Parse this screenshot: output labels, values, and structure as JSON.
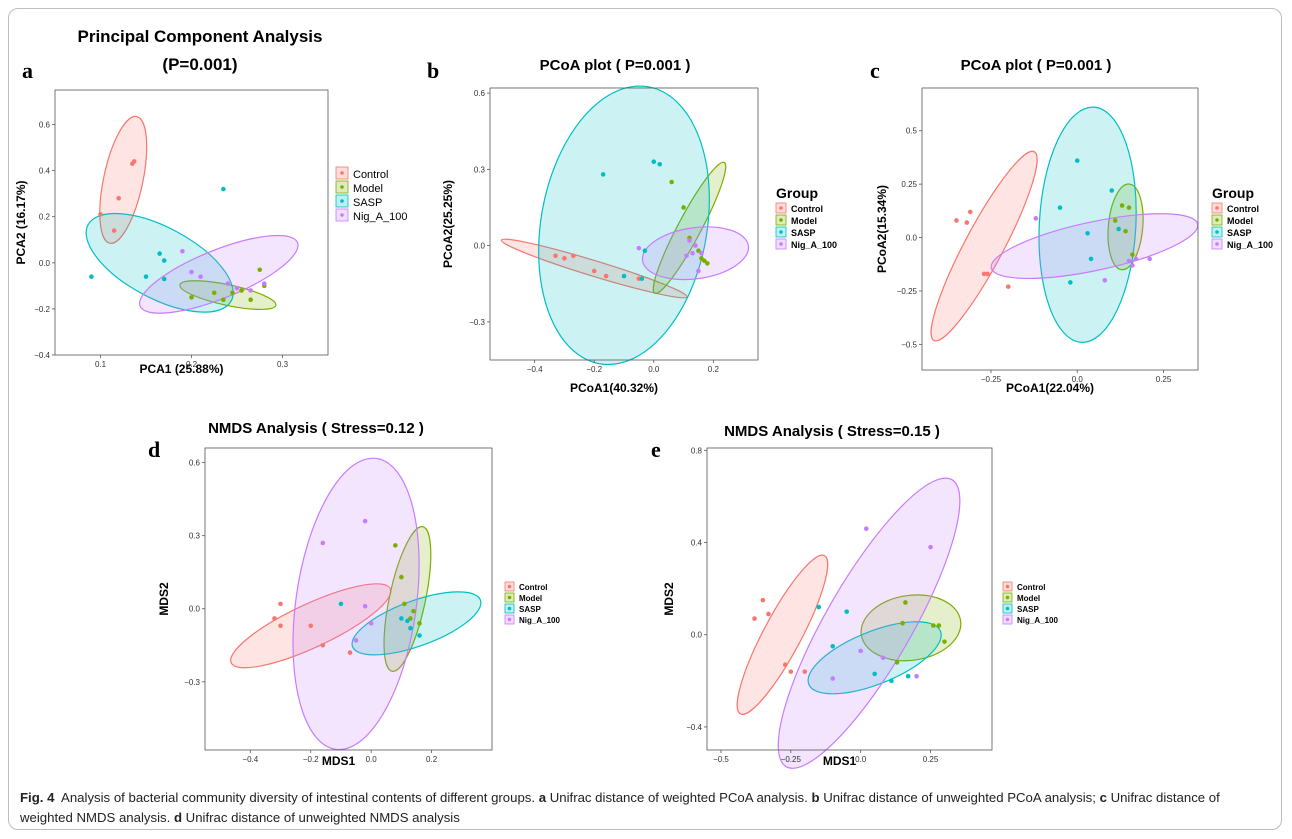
{
  "caption": {
    "fig_label": "Fig. 4",
    "text_1": "Analysis of bacterial community diversity of intestinal contents of different groups.",
    "label_a": "a",
    "text_a": "Unifrac distance of weighted PCoA analysis.",
    "label_b": "b",
    "text_b": "Unifrac distance of unweighted PCoA analysis;",
    "label_c": "c",
    "text_c": "Unifrac distance of weighted NMDS analysis.",
    "label_d": "d",
    "text_d": "Unifrac distance of unweighted NMDS analysis"
  },
  "colors": {
    "Control": "#F8766D",
    "Model": "#7CAE00",
    "SASP": "#00BFC4",
    "Nig_A_100": "#C77CFF"
  },
  "chart_data": [
    {
      "panel": "a",
      "type": "scatter",
      "title": "Principal Component Analysis",
      "subtitle": "(P=0.001)",
      "xlabel": "PCA1 (25.88%)",
      "ylabel": "PCA2 (16.17%)",
      "xlim": [
        0.05,
        0.35
      ],
      "ylim": [
        -0.4,
        0.75
      ],
      "xticks": [
        0.1,
        0.2,
        0.3
      ],
      "yticks": [
        -0.4,
        -0.2,
        0.0,
        0.2,
        0.4,
        0.6
      ],
      "legend_title": "",
      "legend_placement": "right",
      "series": [
        {
          "name": "Control",
          "points": [
            [
              0.1,
              0.21
            ],
            [
              0.115,
              0.14
            ],
            [
              0.12,
              0.28
            ],
            [
              0.135,
              0.43
            ],
            [
              0.137,
              0.44
            ]
          ],
          "ellipse": {
            "cx": 0.125,
            "cy": 0.36,
            "rx": 0.22,
            "ry": 0.022,
            "angle": -78
          }
        },
        {
          "name": "Model",
          "points": [
            [
              0.2,
              -0.15
            ],
            [
              0.225,
              -0.13
            ],
            [
              0.235,
              -0.16
            ],
            [
              0.245,
              -0.13
            ],
            [
              0.255,
              -0.12
            ],
            [
              0.265,
              -0.16
            ],
            [
              0.275,
              -0.03
            ],
            [
              0.28,
              -0.1
            ]
          ],
          "ellipse": {
            "cx": 0.24,
            "cy": -0.14,
            "rx": 0.055,
            "ry": 0.035,
            "angle": 12
          }
        },
        {
          "name": "SASP",
          "points": [
            [
              0.09,
              -0.06
            ],
            [
              0.15,
              -0.06
            ],
            [
              0.165,
              0.04
            ],
            [
              0.17,
              0.01
            ],
            [
              0.17,
              -0.07
            ],
            [
              0.235,
              0.32
            ]
          ],
          "ellipse": {
            "cx": 0.165,
            "cy": 0.0,
            "rx": 0.1,
            "ry": 0.075,
            "angle": 28
          }
        },
        {
          "name": "Nig_A_100",
          "points": [
            [
              0.19,
              0.05
            ],
            [
              0.2,
              -0.04
            ],
            [
              0.21,
              -0.06
            ],
            [
              0.24,
              -0.09
            ],
            [
              0.25,
              -0.11
            ],
            [
              0.265,
              -0.12
            ],
            [
              0.28,
              -0.09
            ]
          ],
          "ellipse": {
            "cx": 0.23,
            "cy": -0.05,
            "rx": 0.1,
            "ry": 0.06,
            "angle": -22
          }
        }
      ]
    },
    {
      "panel": "b",
      "type": "scatter",
      "title": "PCoA plot ( P=0.001 )",
      "subtitle": "",
      "xlabel": "PCoA1(40.32%)",
      "ylabel": "PCoA2(25.25%)",
      "xlim": [
        -0.55,
        0.35
      ],
      "ylim": [
        -0.45,
        0.62
      ],
      "xticks": [
        -0.4,
        -0.2,
        0.0,
        0.2
      ],
      "yticks": [
        -0.3,
        0.0,
        0.3,
        0.6
      ],
      "legend_title": "Group",
      "legend_placement": "right",
      "series": [
        {
          "name": "Control",
          "points": [
            [
              -0.33,
              -0.04
            ],
            [
              -0.3,
              -0.05
            ],
            [
              -0.27,
              -0.04
            ],
            [
              -0.2,
              -0.1
            ],
            [
              -0.16,
              -0.12
            ],
            [
              -0.05,
              -0.13
            ]
          ],
          "ellipse": {
            "cx": -0.2,
            "cy": -0.09,
            "rx": 0.33,
            "ry": 0.03,
            "angle": 17
          }
        },
        {
          "name": "Model",
          "points": [
            [
              0.06,
              0.25
            ],
            [
              0.1,
              0.15
            ],
            [
              0.12,
              0.03
            ],
            [
              0.15,
              -0.02
            ],
            [
              0.16,
              -0.05
            ],
            [
              0.17,
              -0.06
            ],
            [
              0.18,
              -0.07
            ]
          ],
          "ellipse": {
            "cx": 0.12,
            "cy": 0.07,
            "rx": 0.28,
            "ry": 0.04,
            "angle": -62
          }
        },
        {
          "name": "SASP",
          "points": [
            [
              -0.17,
              0.28
            ],
            [
              -0.1,
              -0.12
            ],
            [
              -0.04,
              -0.13
            ],
            [
              -0.03,
              -0.02
            ],
            [
              0.0,
              0.33
            ],
            [
              0.02,
              0.32
            ]
          ],
          "ellipse": {
            "cx": -0.1,
            "cy": 0.08,
            "rx": 0.55,
            "ry": 0.28,
            "angle": -80
          }
        },
        {
          "name": "Nig_A_100",
          "points": [
            [
              -0.05,
              -0.01
            ],
            [
              0.11,
              -0.04
            ],
            [
              0.12,
              0.02
            ],
            [
              0.13,
              -0.03
            ],
            [
              0.14,
              0.0
            ],
            [
              0.15,
              -0.1
            ],
            [
              0.16,
              -0.03
            ]
          ],
          "ellipse": {
            "cx": 0.14,
            "cy": -0.03,
            "rx": 0.18,
            "ry": 0.1,
            "angle": -8
          }
        }
      ]
    },
    {
      "panel": "c",
      "type": "scatter",
      "title": "PCoA plot ( P=0.001 )",
      "subtitle": "",
      "xlabel": "PCoA1(22.04%)",
      "ylabel": "PCoA2(15.34%)",
      "xlim": [
        -0.45,
        0.35
      ],
      "ylim": [
        -0.62,
        0.7
      ],
      "xticks": [
        -0.25,
        0.0,
        0.25
      ],
      "yticks": [
        -0.5,
        -0.25,
        0.0,
        0.25,
        0.5
      ],
      "legend_title": "Group",
      "legend_placement": "right",
      "series": [
        {
          "name": "Control",
          "points": [
            [
              -0.35,
              0.08
            ],
            [
              -0.32,
              0.07
            ],
            [
              -0.31,
              0.12
            ],
            [
              -0.27,
              -0.17
            ],
            [
              -0.26,
              -0.17
            ],
            [
              -0.2,
              -0.23
            ]
          ],
          "ellipse": {
            "cx": -0.27,
            "cy": -0.04,
            "rx": 0.43,
            "ry": 0.06,
            "angle": -62
          }
        },
        {
          "name": "Model",
          "points": [
            [
              0.11,
              0.08
            ],
            [
              0.13,
              0.15
            ],
            [
              0.14,
              0.03
            ],
            [
              0.15,
              0.14
            ],
            [
              0.16,
              -0.08
            ]
          ],
          "ellipse": {
            "cx": 0.14,
            "cy": 0.05,
            "rx": 0.2,
            "ry": 0.05,
            "angle": -85
          }
        },
        {
          "name": "SASP",
          "points": [
            [
              -0.05,
              0.14
            ],
            [
              -0.02,
              -0.21
            ],
            [
              0.0,
              0.36
            ],
            [
              0.03,
              0.02
            ],
            [
              0.04,
              -0.1
            ],
            [
              0.1,
              0.22
            ],
            [
              0.12,
              0.04
            ]
          ],
          "ellipse": {
            "cx": 0.03,
            "cy": 0.06,
            "rx": 0.55,
            "ry": 0.14,
            "angle": -87
          }
        },
        {
          "name": "Nig_A_100",
          "points": [
            [
              -0.12,
              0.09
            ],
            [
              0.08,
              -0.2
            ],
            [
              0.15,
              -0.11
            ],
            [
              0.16,
              -0.13
            ],
            [
              0.17,
              -0.1
            ],
            [
              0.21,
              -0.1
            ]
          ],
          "ellipse": {
            "cx": 0.05,
            "cy": -0.04,
            "rx": 0.31,
            "ry": 0.11,
            "angle": -12
          }
        }
      ]
    },
    {
      "panel": "d",
      "type": "scatter",
      "title": "NMDS Analysis ( Stress=0.12 )",
      "subtitle": "",
      "xlabel": "MDS1",
      "ylabel": "MDS2",
      "xlim": [
        -0.55,
        0.4
      ],
      "ylim": [
        -0.58,
        0.66
      ],
      "xticks": [
        -0.4,
        -0.2,
        0.0,
        0.2
      ],
      "yticks": [
        -0.3,
        0.0,
        0.3,
        0.6
      ],
      "legend_title": "",
      "legend_placement": "right",
      "series": [
        {
          "name": "Control",
          "points": [
            [
              -0.32,
              -0.04
            ],
            [
              -0.3,
              0.02
            ],
            [
              -0.3,
              -0.07
            ],
            [
              -0.2,
              -0.07
            ],
            [
              -0.16,
              -0.15
            ],
            [
              -0.07,
              -0.18
            ]
          ],
          "ellipse": {
            "cx": -0.2,
            "cy": -0.07,
            "rx": 0.3,
            "ry": 0.085,
            "angle": -25
          }
        },
        {
          "name": "Model",
          "points": [
            [
              0.08,
              0.26
            ],
            [
              0.1,
              0.13
            ],
            [
              0.11,
              0.02
            ],
            [
              0.13,
              -0.04
            ],
            [
              0.14,
              -0.01
            ],
            [
              0.16,
              -0.06
            ]
          ],
          "ellipse": {
            "cx": 0.12,
            "cy": 0.04,
            "rx": 0.3,
            "ry": 0.06,
            "angle": -78
          }
        },
        {
          "name": "SASP",
          "points": [
            [
              -0.1,
              0.02
            ],
            [
              0.1,
              -0.04
            ],
            [
              0.12,
              -0.05
            ],
            [
              0.13,
              -0.08
            ],
            [
              0.16,
              -0.11
            ]
          ],
          "ellipse": {
            "cx": 0.15,
            "cy": -0.06,
            "rx": 0.23,
            "ry": 0.09,
            "angle": -20
          }
        },
        {
          "name": "Nig_A_100",
          "points": [
            [
              -0.16,
              0.27
            ],
            [
              -0.05,
              -0.13
            ],
            [
              -0.02,
              0.36
            ],
            [
              -0.02,
              0.01
            ],
            [
              0.0,
              -0.06
            ]
          ],
          "ellipse": {
            "cx": -0.05,
            "cy": 0.02,
            "rx": 0.6,
            "ry": 0.2,
            "angle": -82
          }
        }
      ]
    },
    {
      "panel": "e",
      "type": "scatter",
      "title": "NMDS Analysis ( Stress=0.15 )",
      "subtitle": "",
      "xlabel": "MDS1",
      "ylabel": "MDS2",
      "xlim": [
        -0.55,
        0.47
      ],
      "ylim": [
        -0.5,
        0.81
      ],
      "xticks": [
        -0.5,
        -0.25,
        0.0,
        0.25
      ],
      "yticks": [
        -0.4,
        0.0,
        0.4,
        0.8
      ],
      "legend_title": "",
      "legend_placement": "right",
      "series": [
        {
          "name": "Control",
          "points": [
            [
              -0.38,
              0.07
            ],
            [
              -0.35,
              0.15
            ],
            [
              -0.33,
              0.09
            ],
            [
              -0.27,
              -0.13
            ],
            [
              -0.25,
              -0.16
            ],
            [
              -0.2,
              -0.16
            ]
          ],
          "ellipse": {
            "cx": -0.28,
            "cy": 0.0,
            "rx": 0.37,
            "ry": 0.07,
            "angle": -62
          }
        },
        {
          "name": "Model",
          "points": [
            [
              0.13,
              -0.12
            ],
            [
              0.15,
              0.05
            ],
            [
              0.16,
              0.14
            ],
            [
              0.26,
              0.04
            ],
            [
              0.28,
              0.04
            ],
            [
              0.3,
              -0.03
            ]
          ],
          "ellipse": {
            "cx": 0.18,
            "cy": 0.03,
            "rx": 0.18,
            "ry": 0.14,
            "angle": -8
          }
        },
        {
          "name": "SASP",
          "points": [
            [
              -0.15,
              0.12
            ],
            [
              -0.1,
              -0.05
            ],
            [
              -0.05,
              0.1
            ],
            [
              0.05,
              -0.17
            ],
            [
              0.11,
              -0.2
            ],
            [
              0.17,
              -0.18
            ]
          ],
          "ellipse": {
            "cx": 0.05,
            "cy": -0.1,
            "rx": 0.26,
            "ry": 0.11,
            "angle": -22
          }
        },
        {
          "name": "Nig_A_100",
          "points": [
            [
              -0.1,
              -0.19
            ],
            [
              0.0,
              -0.07
            ],
            [
              0.02,
              0.46
            ],
            [
              0.08,
              -0.1
            ],
            [
              0.2,
              -0.18
            ],
            [
              0.25,
              0.38
            ]
          ],
          "ellipse": {
            "cx": 0.03,
            "cy": 0.05,
            "rx": 0.68,
            "ry": 0.16,
            "angle": -60
          }
        }
      ]
    }
  ]
}
